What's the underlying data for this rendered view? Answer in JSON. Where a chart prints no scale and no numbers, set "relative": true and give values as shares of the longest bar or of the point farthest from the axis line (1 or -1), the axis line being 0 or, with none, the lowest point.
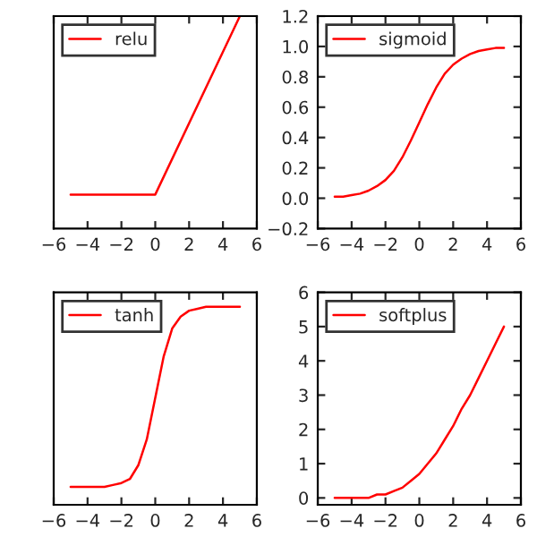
{
  "chart_data": [
    {
      "type": "line",
      "relative": true,
      "tick_labels": "x",
      "legend": "top left",
      "grid": false,
      "x": [
        -5,
        0,
        5
      ],
      "xlim": [
        -6,
        6
      ],
      "xticks": [
        -6,
        -4,
        -2,
        0,
        2,
        4,
        6
      ],
      "series": [
        {
          "name": "relu",
          "color": "#ff0000",
          "values": [
            0.16,
            0.16,
            1
          ]
        }
      ]
    },
    {
      "type": "line",
      "legend": "top left",
      "grid": false,
      "x": [
        -5,
        -4.5,
        -4,
        -3.5,
        -3,
        -2.5,
        -2,
        -1.5,
        -1,
        -0.5,
        0,
        0.5,
        1,
        1.5,
        2,
        2.5,
        3,
        3.5,
        4,
        4.5,
        5
      ],
      "xlim": [
        -6,
        6
      ],
      "xticks": [
        -6,
        -4,
        -2,
        0,
        2,
        4,
        6
      ],
      "ylim": [
        -0.2,
        1.2
      ],
      "yticks": [
        -0.2,
        {
          "value": 0,
          "label": "0.0"
        },
        0.2,
        0.4,
        0.6,
        0.8,
        {
          "value": 1,
          "label": "1.0"
        },
        1.2
      ],
      "series": [
        {
          "name": "sigmoid",
          "color": "#ff0000",
          "values": [
            0.01,
            0.01,
            0.02,
            0.03,
            0.05,
            0.08,
            0.12,
            0.18,
            0.27,
            0.38,
            0.5,
            0.62,
            0.73,
            0.82,
            0.88,
            0.92,
            0.95,
            0.97,
            0.98,
            0.99,
            0.99
          ]
        }
      ]
    },
    {
      "type": "line",
      "relative": true,
      "tick_labels": "x",
      "legend": "top left",
      "grid": false,
      "x": [
        -5,
        -4.5,
        -4,
        -3.5,
        -3,
        -2.5,
        -2,
        -1.5,
        -1,
        -0.5,
        0,
        0.5,
        1,
        1.5,
        2,
        2.5,
        3,
        3.5,
        4,
        4.5,
        5
      ],
      "xlim": [
        -6,
        6
      ],
      "xticks": [
        -6,
        -4,
        -2,
        0,
        2,
        4,
        6
      ],
      "series": [
        {
          "name": "tanh",
          "color": "#ff0000",
          "values": [
            0.09,
            0.09,
            0.09,
            0.09,
            0.09,
            0.1,
            0.11,
            0.13,
            0.2,
            0.33,
            0.54,
            0.75,
            0.89,
            0.95,
            0.98,
            0.99,
            1,
            1,
            1,
            1,
            1
          ]
        }
      ]
    },
    {
      "type": "line",
      "legend": "top left",
      "grid": false,
      "x": [
        -5,
        -4.5,
        -4,
        -3.5,
        -3,
        -2.5,
        -2,
        -1.5,
        -1,
        -0.5,
        0,
        0.5,
        1,
        1.5,
        2,
        2.5,
        3,
        3.5,
        4,
        4.5,
        5
      ],
      "xlim": [
        -6,
        6
      ],
      "xticks": [
        -6,
        -4,
        -2,
        0,
        2,
        4,
        6
      ],
      "ylim": [
        -0.2,
        6
      ],
      "yticks": [
        0,
        1,
        2,
        3,
        4,
        5,
        6
      ],
      "series": [
        {
          "name": "softplus",
          "color": "#ff0000",
          "values": [
            0.0,
            0.0,
            0.0,
            0.0,
            0.0,
            0.1,
            0.1,
            0.2,
            0.3,
            0.5,
            0.7,
            1.0,
            1.3,
            1.7,
            2.1,
            2.6,
            3.0,
            3.5,
            4.0,
            4.5,
            5.0
          ]
        }
      ]
    }
  ]
}
